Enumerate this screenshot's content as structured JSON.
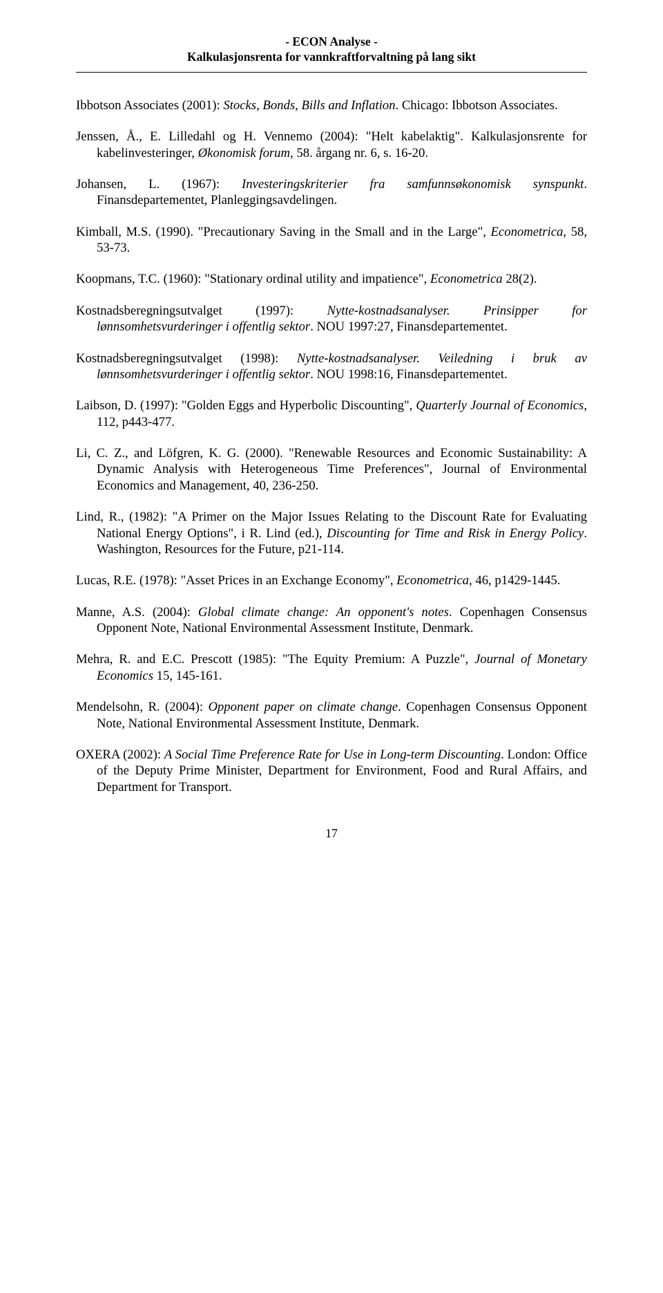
{
  "header": {
    "line1": "- ECON Analyse -",
    "line2": "Kalkulasjonsrenta for vannkraftforvaltning på lang sikt"
  },
  "references": [
    {
      "html": "Ibbotson Associates (2001): <span class='italic'>Stocks, Bonds, Bills and Inflation</span>. Chicago: Ibbotson Associates."
    },
    {
      "html": "Jenssen, Å., E. Lilledahl og H. Vennemo (2004): \"Helt kabelaktig\". Kalkulasjonsrente for kabelinvesteringer, <span class='italic'>Økonomisk forum</span>, 58. årgang nr. 6, s. 16-20."
    },
    {
      "html": "Johansen, L. (1967): <span class='italic'>Investeringskriterier fra samfunnsøkonomisk synspunkt</span>. Finansdepartementet, Planleggingsavdelingen."
    },
    {
      "html": "Kimball, M.S. (1990). \"Precautionary Saving in the Small and in the Large\", <span class='italic'>Econometrica</span>, 58, 53-73."
    },
    {
      "html": "Koopmans, T.C. (1960): \"Stationary ordinal utility and impatience\", <span class='italic'>Econometrica</span> 28(2)."
    },
    {
      "html": "Kostnadsberegningsutvalget (1997): <span class='italic'>Nytte-kostnadsanalyser. Prinsipper for lønnsomhetsvurderinger i offentlig sektor</span>. NOU 1997:27, Finansdepartementet."
    },
    {
      "html": "Kostnadsberegningsutvalget (1998): <span class='italic'>Nytte-kostnadsanalyser. Veiledning i bruk av lønnsomhetsvurderinger i offentlig sektor</span>. NOU 1998:16, Finansdepartementet."
    },
    {
      "html": "Laibson, D. (1997): \"Golden Eggs and Hyperbolic Discounting\", <span class='italic'>Quarterly Journal of Economics</span>, 112, p443-477."
    },
    {
      "html": "Li, C. Z., and Löfgren, K. G. (2000). \"Renewable Resources and Economic Sustainability: A Dynamic Analysis with Heterogeneous Time Preferences\", Journal of Environmental Economics and Management, 40, 236-250."
    },
    {
      "html": "Lind, R., (1982): \"A Primer on the Major Issues Relating to the Discount Rate for Evaluating National Energy Options\", i R. Lind (ed.), <span class='italic'>Discounting for Time and Risk in Energy Policy</span>. Washington, Resources for the Future, p21-114."
    },
    {
      "html": "Lucas, R.E. (1978): \"Asset Prices in an Exchange Economy\", <span class='italic'>Econometrica</span>, 46, p1429-1445."
    },
    {
      "html": "Manne, A.S. (2004): <span class='italic'>Global climate change: An opponent's notes</span>. Copenhagen Consensus Opponent Note, National Environmental Assessment Institute, Denmark."
    },
    {
      "html": "Mehra, R. and E.C. Prescott (1985): \"The Equity Premium: A Puzzle\", <span class='italic'>Journal of Monetary Economics</span> 15, 145-161."
    },
    {
      "html": "Mendelsohn, R. (2004): <span class='italic'>Opponent paper on climate change</span>. Copenhagen Consensus Opponent Note, National Environmental Assessment Institute, Denmark."
    },
    {
      "html": "OXERA (2002): <span class='italic'>A Social Time Preference Rate for Use in Long-term Discounting</span>. London: Office of the Deputy Prime Minister, Department for Environment, Food and Rural Affairs, and Department for Transport."
    }
  ],
  "page_number": "17"
}
